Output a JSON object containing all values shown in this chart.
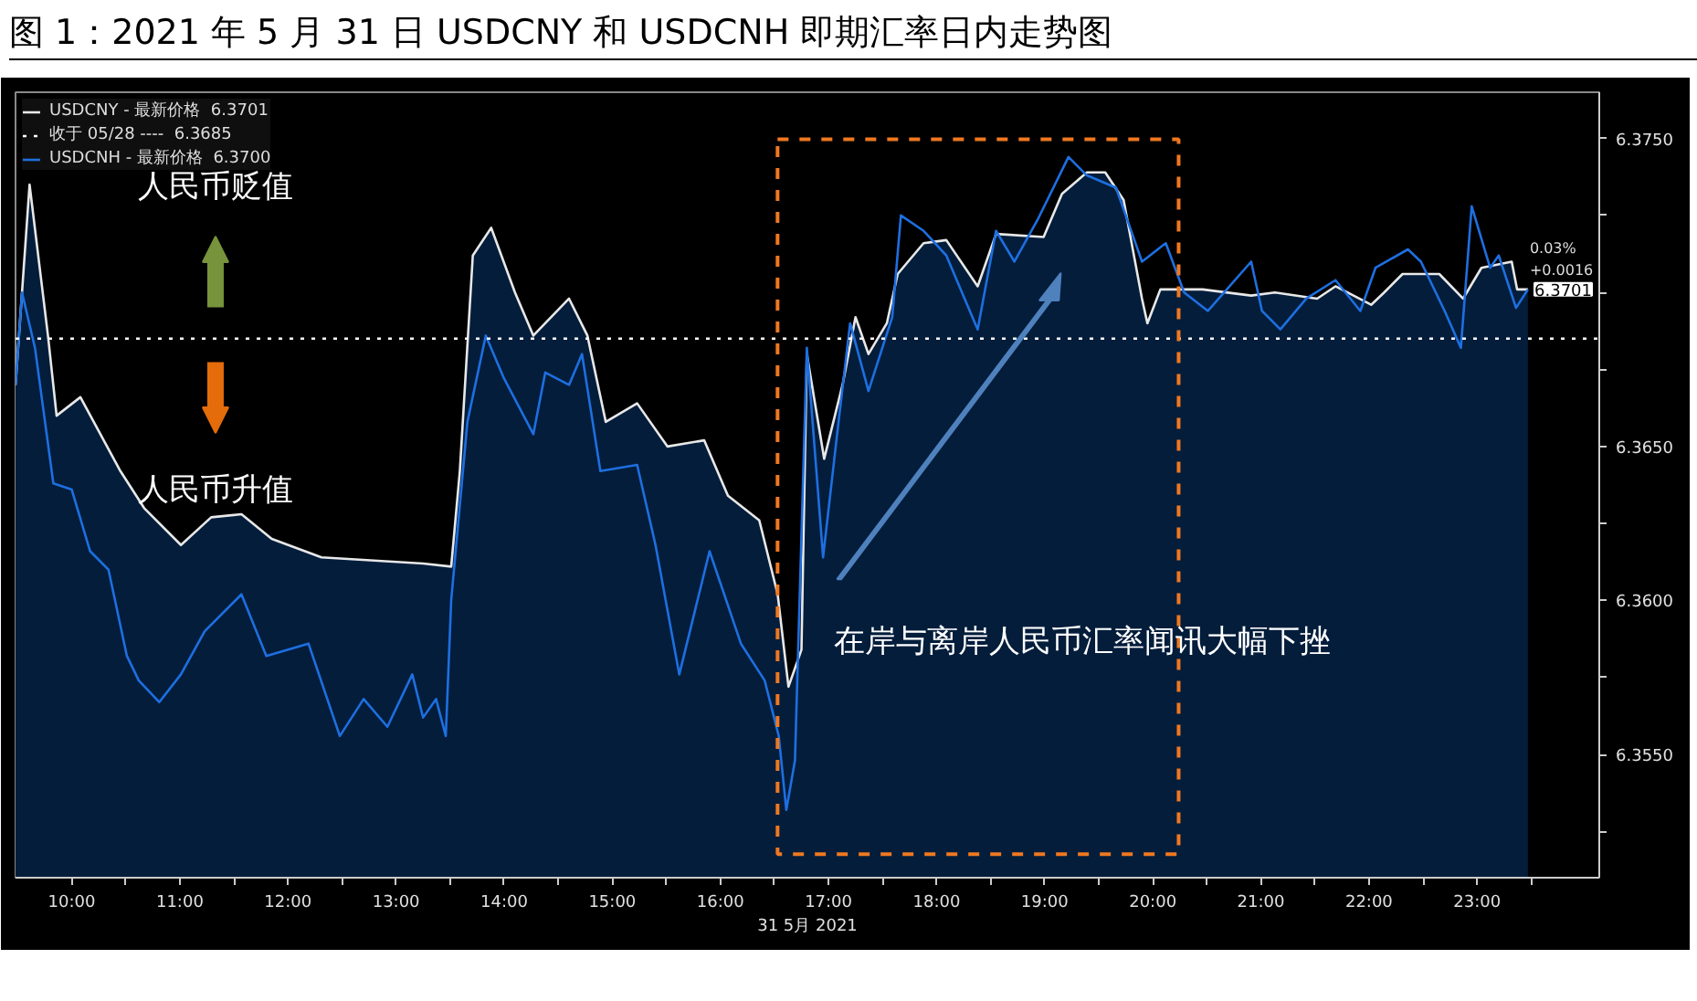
{
  "chart_data": {
    "type": "area",
    "title": "图 1：2021 年 5 月 31 日 USDCNY 和 USDCNH 即期汇率日内走势图",
    "xlabel": "31 5月 2021",
    "series": [
      {
        "name": "USDCNY - 最新价格  6.3701",
        "color": "#e8e8e8",
        "x": [
          9.48,
          9.61,
          9.78,
          9.86,
          10.08,
          10.45,
          10.67,
          11.01,
          11.29,
          11.57,
          11.85,
          12.31,
          13.25,
          13.51,
          13.59,
          13.71,
          13.88,
          14.1,
          14.27,
          14.6,
          14.77,
          14.94,
          15.23,
          15.51,
          15.85,
          16.07,
          16.36,
          16.53,
          16.63,
          16.75,
          16.8,
          16.96,
          17.13,
          17.25,
          17.37,
          17.54,
          17.64,
          17.88,
          18.09,
          18.38,
          18.55,
          18.99,
          19.16,
          19.39,
          19.56,
          19.73,
          19.9,
          19.95,
          20.07,
          20.46,
          20.91,
          21.13,
          21.52,
          21.69,
          22.02,
          22.14,
          22.31,
          22.65,
          22.87,
          23.04,
          23.32,
          23.37,
          23.47
        ],
        "values": [
          6.367,
          6.3735,
          6.3686,
          6.366,
          6.3666,
          6.3642,
          6.363,
          6.3618,
          6.3627,
          6.3628,
          6.362,
          6.3614,
          6.3612,
          6.3611,
          6.3642,
          6.3712,
          6.3721,
          6.37,
          6.3686,
          6.3698,
          6.3686,
          6.3658,
          6.3664,
          6.365,
          6.3652,
          6.3634,
          6.3626,
          6.3602,
          6.3572,
          6.3584,
          6.368,
          6.3646,
          6.367,
          6.3692,
          6.368,
          6.369,
          6.3706,
          6.3716,
          6.3717,
          6.3702,
          6.3719,
          6.3718,
          6.3732,
          6.3739,
          6.3739,
          6.373,
          6.3698,
          6.369,
          6.3701,
          6.3701,
          6.3699,
          6.37,
          6.3698,
          6.3702,
          6.3696,
          6.37,
          6.3706,
          6.3706,
          6.3698,
          6.3708,
          6.371,
          6.3701,
          6.3701
        ]
      },
      {
        "name": "USDCNH - 最新价格  6.3700",
        "color": "#1e6fe0",
        "type": "line",
        "x": [
          9.48,
          9.54,
          9.66,
          9.83,
          10.0,
          10.17,
          10.34,
          10.51,
          10.62,
          10.81,
          11.01,
          11.23,
          11.57,
          11.8,
          12.19,
          12.48,
          12.7,
          12.92,
          13.15,
          13.25,
          13.37,
          13.46,
          13.51,
          13.66,
          13.83,
          14.0,
          14.27,
          14.38,
          14.6,
          14.72,
          14.89,
          15.23,
          15.4,
          15.62,
          15.9,
          16.19,
          16.41,
          16.54,
          16.61,
          16.69,
          16.8,
          16.95,
          17.08,
          17.2,
          17.37,
          17.59,
          17.67,
          17.88,
          18.09,
          18.38,
          18.55,
          18.72,
          18.94,
          19.22,
          19.39,
          19.66,
          19.9,
          20.12,
          20.29,
          20.51,
          20.91,
          21.01,
          21.18,
          21.42,
          21.69,
          21.92,
          22.06,
          22.36,
          22.48,
          22.7,
          22.85,
          22.95,
          23.12,
          23.2,
          23.36,
          23.47
        ],
        "values": [
          6.367,
          6.37,
          6.3682,
          6.3638,
          6.3636,
          6.3616,
          6.361,
          6.3582,
          6.3574,
          6.3567,
          6.3576,
          6.359,
          6.3602,
          6.3582,
          6.3586,
          6.3556,
          6.3568,
          6.3559,
          6.3576,
          6.3562,
          6.3568,
          6.3556,
          6.36,
          6.3658,
          6.3686,
          6.3672,
          6.3654,
          6.3674,
          6.367,
          6.368,
          6.3642,
          6.3644,
          6.3618,
          6.3576,
          6.3616,
          6.3586,
          6.3574,
          6.3556,
          6.3532,
          6.3548,
          6.3682,
          6.3614,
          6.3654,
          6.369,
          6.3668,
          6.3692,
          6.3725,
          6.372,
          6.3712,
          6.3688,
          6.372,
          6.371,
          6.3724,
          6.3744,
          6.3738,
          6.3734,
          6.371,
          6.3716,
          6.37,
          6.3694,
          6.371,
          6.3694,
          6.3688,
          6.3698,
          6.3704,
          6.3694,
          6.3708,
          6.3714,
          6.371,
          6.3694,
          6.3682,
          6.3728,
          6.3708,
          6.3712,
          6.3695,
          6.3701
        ]
      }
    ],
    "xlim": [
      9.48,
      24.13
    ],
    "ylim": [
      6.351,
      6.3765
    ],
    "xticks": [
      {
        "value": 10,
        "label": "10:00"
      },
      {
        "value": 10.5,
        "label": null
      },
      {
        "value": 11,
        "label": "11:00"
      },
      {
        "value": 11.5,
        "label": null
      },
      {
        "value": 12,
        "label": "12:00"
      },
      {
        "value": 12.5,
        "label": null
      },
      {
        "value": 13,
        "label": "13:00"
      },
      {
        "value": 13.5,
        "label": null
      },
      {
        "value": 14,
        "label": "14:00"
      },
      {
        "value": 14.5,
        "label": null
      },
      {
        "value": 15,
        "label": "15:00"
      },
      {
        "value": 15.5,
        "label": null
      },
      {
        "value": 16,
        "label": "16:00"
      },
      {
        "value": 16.5,
        "label": null
      },
      {
        "value": 17,
        "label": "17:00"
      },
      {
        "value": 17.5,
        "label": null
      },
      {
        "value": 18,
        "label": "18:00"
      },
      {
        "value": 18.5,
        "label": null
      },
      {
        "value": 19,
        "label": "19:00"
      },
      {
        "value": 19.5,
        "label": null
      },
      {
        "value": 20,
        "label": "20:00"
      },
      {
        "value": 20.5,
        "label": null
      },
      {
        "value": 21,
        "label": "21:00"
      },
      {
        "value": 21.5,
        "label": null
      },
      {
        "value": 22,
        "label": "22:00"
      },
      {
        "value": 22.5,
        "label": null
      },
      {
        "value": 23,
        "label": "23:00"
      },
      {
        "value": 23.5,
        "label": null
      }
    ],
    "yticks": [
      {
        "value": 6.3525,
        "label": null
      },
      {
        "value": 6.355,
        "label": "6.3550"
      },
      {
        "value": 6.3575,
        "label": null
      },
      {
        "value": 6.36,
        "label": "6.3600"
      },
      {
        "value": 6.3625,
        "label": null
      },
      {
        "value": 6.365,
        "label": "6.3650"
      },
      {
        "value": 6.3675,
        "label": null
      },
      {
        "value": 6.37,
        "label": null
      },
      {
        "value": 6.3725,
        "label": null
      },
      {
        "value": 6.375,
        "label": "6.3750"
      }
    ],
    "ref_lines": [
      {
        "axis": "y",
        "value": 6.3685,
        "label": "收于 05/28 ----  6.3685",
        "color": "#ffffff",
        "line_style": "dotted"
      }
    ],
    "annotations": [
      "人民币贬值",
      "人民币升值",
      "在岸与离岸人民币汇率闻讯大幅下挫",
      "0.03%",
      "+0.0016",
      "6.3701"
    ],
    "legend": "top left",
    "grid": false
  }
}
